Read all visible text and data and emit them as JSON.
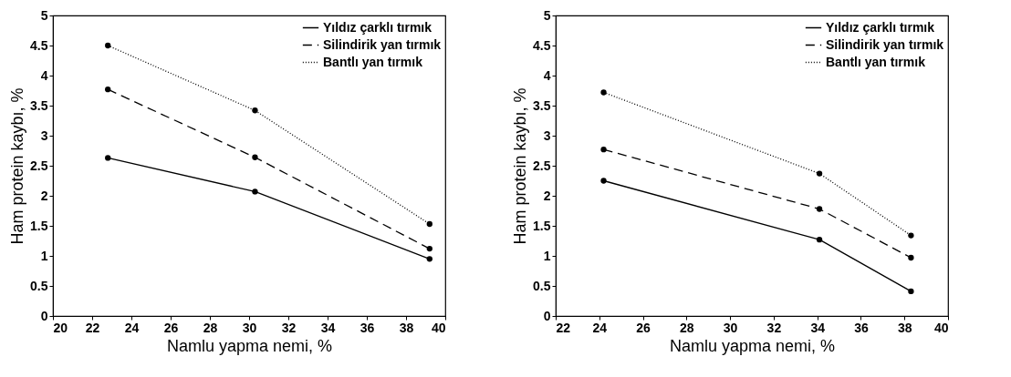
{
  "chart_data": [
    {
      "type": "line",
      "xlabel": "Namlu yapma nemi, %",
      "ylabel": "Ham protein kaybı, %",
      "x": [
        22.8,
        30.3,
        39.2
      ],
      "xlim": [
        20,
        40
      ],
      "xticks": [
        20,
        22,
        24,
        26,
        28,
        30,
        32,
        34,
        36,
        38,
        40
      ],
      "ylim": [
        0,
        5
      ],
      "yticks": [
        0,
        0.5,
        1,
        1.5,
        2,
        2.5,
        3,
        3.5,
        4,
        4.5,
        5
      ],
      "grid": false,
      "legend": "top right",
      "marker": "circle",
      "series": [
        {
          "name": "Yıldız çarklı tırmık",
          "color": "#000000",
          "line_style": "solid",
          "values": [
            2.63,
            2.07,
            0.95
          ]
        },
        {
          "name": "Silindirik yan tırmık",
          "color": "#000000",
          "line_style": "dashed",
          "values": [
            3.77,
            2.64,
            1.12
          ]
        },
        {
          "name": "Bantlı yan tırmık",
          "color": "#000000",
          "line_style": "dotted",
          "values": [
            4.5,
            3.42,
            1.53
          ]
        }
      ]
    },
    {
      "type": "line",
      "xlabel": "Namlu yapma nemi, %",
      "ylabel": "Ham protein kaybı, %",
      "x": [
        24.2,
        34.1,
        38.3
      ],
      "xlim": [
        22,
        40
      ],
      "xticks": [
        22,
        24,
        26,
        28,
        30,
        32,
        34,
        36,
        38,
        40
      ],
      "ylim": [
        0,
        5
      ],
      "yticks": [
        0,
        0.5,
        1,
        1.5,
        2,
        2.5,
        3,
        3.5,
        4,
        4.5,
        5
      ],
      "grid": false,
      "legend": "top right",
      "marker": "circle",
      "series": [
        {
          "name": "Yıldız çarklı tırmık",
          "color": "#000000",
          "line_style": "solid",
          "values": [
            2.25,
            1.27,
            0.41
          ]
        },
        {
          "name": "Silindirik yan tırmık",
          "color": "#000000",
          "line_style": "dashed",
          "values": [
            2.77,
            1.78,
            0.97
          ]
        },
        {
          "name": "Bantlı yan tırmık",
          "color": "#000000",
          "line_style": "dotted",
          "values": [
            3.72,
            2.37,
            1.34
          ]
        }
      ]
    }
  ]
}
